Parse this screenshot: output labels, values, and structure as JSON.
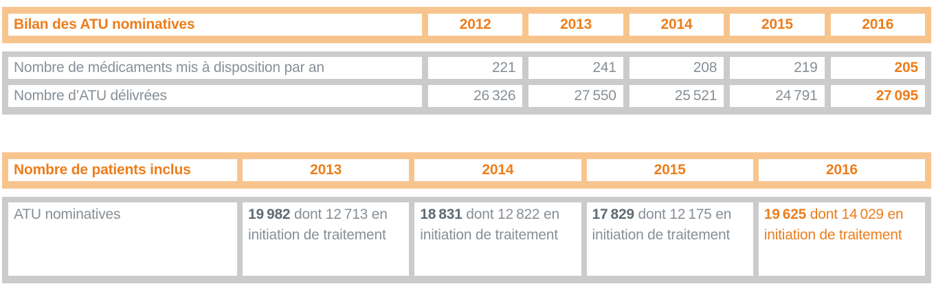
{
  "colors": {
    "accent_orange": "#ED7D1C",
    "peach_border": "#F8C48E",
    "gray_border": "#CBCBCB",
    "text_gray": "#878F96",
    "text_dark_gray": "#5F6B74"
  },
  "table1": {
    "title": "Bilan des ATU nominatives",
    "years": [
      "2012",
      "2013",
      "2014",
      "2015",
      "2016"
    ],
    "rows": [
      {
        "label": "Nombre de médicaments mis à disposition par an",
        "values": [
          "221",
          "241",
          "208",
          "219",
          "205"
        ]
      },
      {
        "label": "Nombre d’ATU délivrées",
        "values": [
          "26 326",
          "27 550",
          "25 521",
          "24 791",
          "27 095"
        ]
      }
    ]
  },
  "table2": {
    "title": "Nombre de patients inclus",
    "years": [
      "2013",
      "2014",
      "2015",
      "2016"
    ],
    "row_label": "ATU nominatives",
    "cells": [
      {
        "bold": "19 982",
        "rest": " dont 12 713 en initiation de traitement"
      },
      {
        "bold": "18 831",
        "rest": " dont 12 822 en initiation de traitement"
      },
      {
        "bold": "17 829",
        "rest": " dont 12 175 en initiation de traitement"
      },
      {
        "bold": "19 625",
        "rest": " dont 14 029 en initiation de traitement"
      }
    ]
  }
}
